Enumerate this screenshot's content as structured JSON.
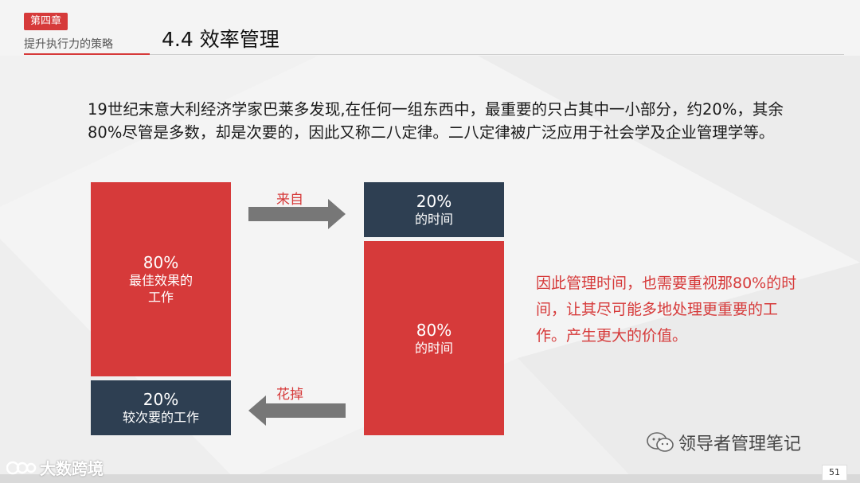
{
  "header": {
    "chapter_tag": "第四章",
    "chapter_subtitle": "提升执行力的策略",
    "section_title": "4.4 效率管理"
  },
  "intro_text": "19世纪末意大利经济学家巴莱多发现,在任何一组东西中，最重要的只占其中一小部分，约20%，其余80%尽管是多数，却是次要的，因此又称二八定律。二八定律被广泛应用于社会学及企业管理学等。",
  "left_column": {
    "top_box": {
      "percent": "80%",
      "label_line1": "最佳效果的",
      "label_line2": "工作"
    },
    "bottom_box": {
      "percent": "20%",
      "label": "较次要的工作"
    }
  },
  "right_column": {
    "top_box": {
      "percent": "20%",
      "label": "的时间"
    },
    "bottom_box": {
      "percent": "80%",
      "label": "的时间"
    }
  },
  "arrows": {
    "top_label": "来自",
    "bottom_label": "花掉"
  },
  "conclusion": "因此管理时间，也需要重视那80%的时间，让其尽可能多地处理更重要的工作。产生更大的价值。",
  "watermark": {
    "wechat": "领导者管理笔记",
    "brand": "大数跨境"
  },
  "page_number": "51",
  "colors": {
    "red": "#d63a3a",
    "navy": "#2e3f52",
    "arrow": "#777777"
  }
}
